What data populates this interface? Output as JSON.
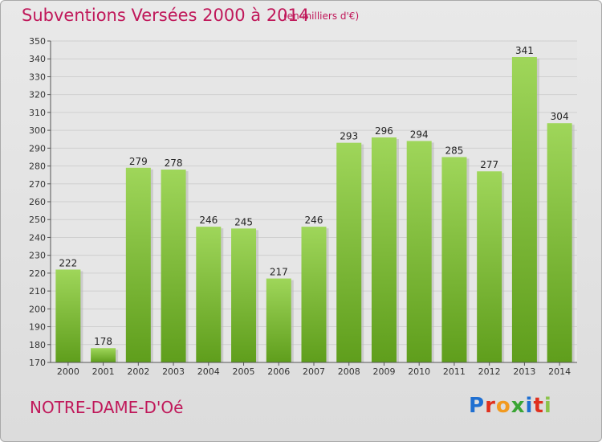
{
  "header": {
    "title": "Subventions Versées 2000 à 2014",
    "subtitle": "(en milliers d'€)"
  },
  "footer": {
    "commune": "NOTRE-DAME-D'Oé",
    "logo_text": "Proxiti",
    "logo_colors": [
      "#1f6fd1",
      "#e0301e",
      "#f29a1f",
      "#3aa535",
      "#1f6fd1",
      "#e0301e",
      "#8bc34a"
    ]
  },
  "chart_data": {
    "type": "bar",
    "categories": [
      "2000",
      "2001",
      "2002",
      "2003",
      "2004",
      "2005",
      "2006",
      "2007",
      "2008",
      "2009",
      "2010",
      "2011",
      "2012",
      "2013",
      "2014"
    ],
    "values": [
      222,
      178,
      279,
      278,
      246,
      245,
      217,
      246,
      293,
      296,
      294,
      285,
      277,
      341,
      304
    ],
    "ylim": [
      170,
      350
    ],
    "ytick_step": 10,
    "grid": "horizontal",
    "bar_color_top": "#9fd65a",
    "bar_color_bottom": "#5f9e1c",
    "show_data_labels": true
  }
}
